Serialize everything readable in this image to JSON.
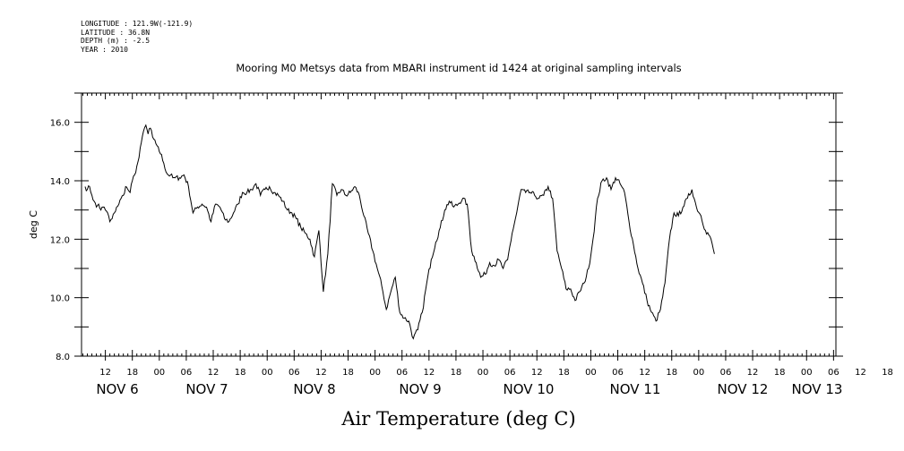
{
  "header": {
    "longitude": "LONGITUDE : 121.9W(-121.9)",
    "latitude": "LATITUDE : 36.8N",
    "depth": "DEPTH (m) : -2.5",
    "year": "YEAR : 2010"
  },
  "chart_data": {
    "type": "line",
    "title": "Mooring M0 Metsys data from MBARI instrument id 1424 at original sampling intervals",
    "xlabel": "Air Temperature (deg C)",
    "ylabel": "deg C",
    "ylim": [
      8.0,
      17.0
    ],
    "xlim_hours": [
      0,
      140
    ],
    "x_unit": "hours from Nov 6 00:00 2010 (displayed range Nov 5 ~07:00 to Nov 13 ~08:00)",
    "y_ticks": [
      "8.0",
      "10.0",
      "12.0",
      "14.0",
      "16.0"
    ],
    "hour_ticks": [
      "12",
      "18",
      "00",
      "06",
      "12",
      "18",
      "00",
      "06",
      "12",
      "18",
      "00",
      "06",
      "12",
      "18",
      "00",
      "06",
      "12",
      "18",
      "00",
      "06",
      "12",
      "18",
      "00",
      "06",
      "12",
      "18",
      "00",
      "06",
      "12",
      "18",
      "00",
      "06"
    ],
    "date_labels": [
      "NOV 6",
      "NOV 7",
      "NOV 8",
      "NOV 9",
      "NOV 10",
      "NOV 11",
      "NOV 12",
      "NOV 13"
    ],
    "grid": false,
    "line_color": "#000000",
    "series": [
      {
        "name": "Air Temperature",
        "x": [
          0.0,
          0.5,
          1.0,
          1.5,
          2.0,
          2.5,
          3.0,
          3.5,
          4.0,
          4.5,
          5.0,
          5.5,
          6.0,
          6.5,
          7.0,
          7.5,
          8.0,
          8.5,
          9.0,
          9.5,
          10.0,
          10.5,
          11.0,
          11.5,
          12.0,
          12.5,
          13.0,
          13.5,
          14.0,
          14.5,
          15.0,
          15.5,
          16.0,
          16.5,
          17.0,
          17.5,
          18.0,
          18.5,
          19.0,
          19.5,
          20.0,
          21.0,
          22.0,
          23.0,
          24.0,
          25.0,
          26.0,
          27.0,
          28.0,
          29.0,
          30.0,
          31.0,
          32.0,
          33.0,
          34.0,
          35.0,
          36.0,
          37.0,
          38.0,
          39.0,
          40.0,
          41.0,
          42.0,
          43.0,
          44.0,
          45.0,
          46.0,
          47.0,
          48.0,
          49.0,
          50.0,
          51.0,
          52.0,
          53.0,
          54.0,
          55.0,
          56.0,
          57.0,
          58.0,
          59.0,
          60.0,
          61.0,
          62.0,
          63.0,
          64.0,
          65.0,
          66.0,
          67.0,
          68.0,
          69.0,
          70.0,
          71.0,
          72.0,
          73.0,
          74.0,
          75.0,
          76.0,
          77.0,
          78.0,
          79.0,
          80.0,
          81.0,
          82.0,
          83.0,
          84.0,
          85.0,
          86.0,
          87.0,
          88.0,
          89.0,
          90.0,
          91.0,
          92.0,
          93.0,
          94.0,
          95.0,
          96.0,
          97.0,
          98.0,
          99.0,
          100.0,
          101.0,
          102.0,
          103.0,
          104.0,
          105.0,
          106.0,
          107.0,
          108.0,
          109.0,
          110.0,
          111.0,
          112.0,
          113.0,
          114.0,
          115.0,
          116.0,
          117.0,
          118.0,
          119.0,
          120.0,
          121.0,
          122.0,
          123.0,
          124.0,
          125.0,
          126.0,
          127.0,
          128.0,
          129.0,
          130.0,
          131.0,
          132.0,
          133.0,
          134.0,
          135.0,
          136.0,
          137.0,
          138.0,
          139.0,
          140.0
        ],
        "values": [
          13.8,
          13.7,
          13.8,
          13.5,
          13.3,
          13.1,
          13.2,
          13.0,
          13.1,
          13.0,
          12.9,
          12.6,
          12.7,
          12.9,
          13.1,
          13.2,
          13.4,
          13.5,
          13.8,
          13.7,
          13.6,
          14.0,
          14.2,
          14.5,
          14.8,
          15.3,
          15.7,
          15.9,
          15.6,
          15.8,
          15.5,
          15.4,
          15.2,
          15.0,
          14.9,
          14.6,
          14.3,
          14.2,
          14.2,
          14.1,
          14.1,
          14.1,
          14.2,
          13.8,
          12.9,
          13.1,
          13.2,
          13.1,
          12.6,
          13.2,
          13.1,
          12.7,
          12.6,
          12.9,
          13.2,
          13.6,
          13.6,
          13.7,
          13.9,
          13.5,
          13.7,
          13.8,
          13.6,
          13.5,
          13.3,
          13.0,
          12.9,
          12.7,
          12.4,
          12.2,
          12.0,
          11.4,
          12.3,
          10.2,
          11.5,
          13.9,
          13.5,
          13.7,
          13.5,
          13.6,
          13.8,
          13.5,
          12.8,
          12.2,
          11.6,
          11.0,
          10.4,
          9.6,
          10.2,
          10.7,
          9.5,
          9.3,
          9.2,
          8.6,
          8.9,
          9.5,
          10.5,
          11.3,
          11.9,
          12.4,
          13.0,
          13.3,
          13.1,
          13.2,
          13.4,
          13.2,
          11.6,
          11.2,
          10.7,
          10.8,
          11.2,
          11.1,
          11.3,
          11.0,
          11.3,
          12.2,
          12.9,
          13.7,
          13.6,
          13.6,
          13.5,
          13.4,
          13.5,
          13.8,
          13.4,
          11.6,
          11.0,
          10.3,
          10.3,
          9.9,
          10.2,
          10.5,
          11.0,
          12.0,
          13.4,
          14.0,
          14.1,
          13.7,
          14.1,
          13.9,
          13.6,
          12.6,
          11.8,
          11.0,
          10.5,
          9.9,
          9.5,
          9.2,
          9.6,
          10.5,
          12.0,
          12.9,
          12.8,
          13.1,
          13.4,
          13.7,
          13.1,
          12.8,
          12.3,
          12.1,
          11.5
        ]
      }
    ]
  }
}
